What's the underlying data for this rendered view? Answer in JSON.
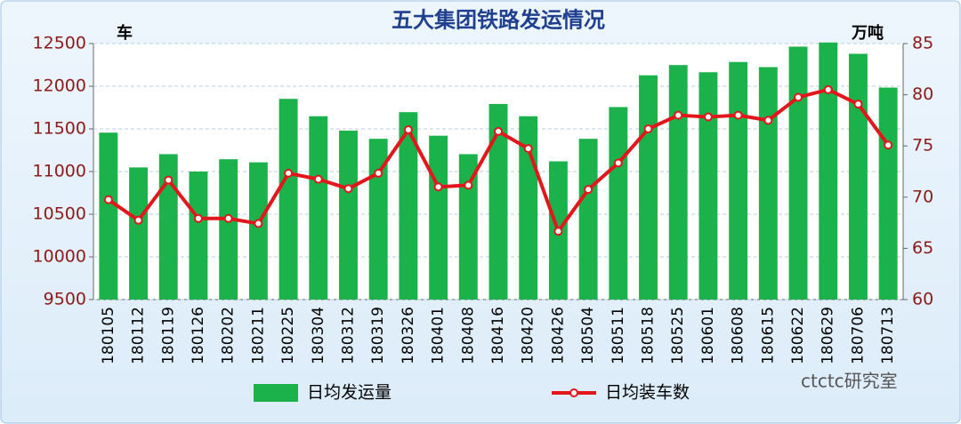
{
  "chart_data": {
    "type": "bar-line",
    "title": "五大集团铁路发运情况",
    "y_label": "车",
    "y2_label": "万吨",
    "categories": [
      "180105",
      "180112",
      "180119",
      "180126",
      "180202",
      "180211",
      "180225",
      "180304",
      "180312",
      "180319",
      "180326",
      "180401",
      "180408",
      "180416",
      "180420",
      "180426",
      "180504",
      "180511",
      "180518",
      "180525",
      "180601",
      "180608",
      "180615",
      "180622",
      "180629",
      "180706",
      "180713"
    ],
    "series": [
      {
        "name": "日均发运量",
        "type": "bar",
        "axis": "y2",
        "color": "#1bb24b",
        "values": [
          76.3,
          72.9,
          74.2,
          72.5,
          73.7,
          73.4,
          79.6,
          77.9,
          76.5,
          75.7,
          78.3,
          76.0,
          74.2,
          79.1,
          77.9,
          73.5,
          75.7,
          78.8,
          81.9,
          82.9,
          82.2,
          83.2,
          82.7,
          84.7,
          85.1,
          84.0,
          80.7
        ]
      },
      {
        "name": "日均装车数",
        "type": "line",
        "axis": "y",
        "color": "#e3161b",
        "values": [
          10670,
          10430,
          10900,
          10450,
          10450,
          10390,
          10980,
          10910,
          10800,
          10980,
          11490,
          10820,
          10840,
          11470,
          11270,
          10300,
          10790,
          11100,
          11500,
          11660,
          11640,
          11660,
          11600,
          11870,
          11960,
          11790,
          11310
        ]
      }
    ],
    "ylim": [
      9500,
      12500
    ],
    "yticks": [
      9500,
      10000,
      10500,
      11000,
      11500,
      12000,
      12500
    ],
    "y2lim": [
      60,
      85
    ],
    "y2ticks": [
      60,
      65,
      70,
      75,
      80,
      85
    ],
    "grid": true,
    "watermark": "ctctc研究室"
  }
}
